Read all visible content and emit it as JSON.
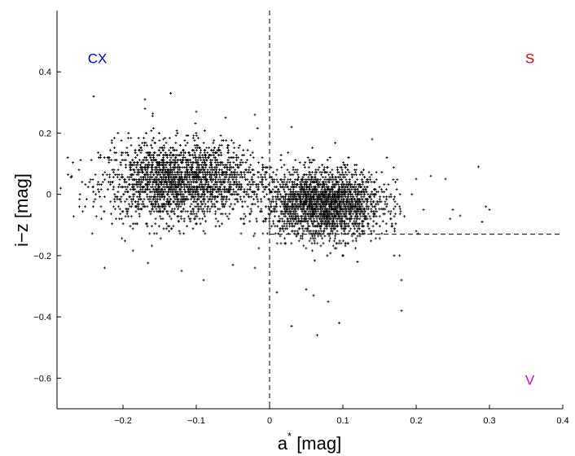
{
  "chart_data": {
    "type": "scatter",
    "xlabel": {
      "main": "a",
      "sup": "*",
      "unit": " [mag]"
    },
    "ylabel": "i−z [mag]",
    "xlim": [
      -0.29,
      0.4
    ],
    "ylim": [
      -0.7,
      0.6
    ],
    "x_ticks": [
      -0.2,
      -0.1,
      0,
      0.1,
      0.2,
      0.3,
      0.4
    ],
    "x_tick_labels": [
      "−0.2",
      "−0.1",
      "0",
      "0.1",
      "0.2",
      "0.3",
      "0.4"
    ],
    "y_ticks": [
      0.4,
      0.2,
      0,
      -0.2,
      -0.4,
      -0.6
    ],
    "y_tick_labels": [
      "0.4",
      "0.2",
      "0",
      "−0.2",
      "−0.4",
      "−0.6"
    ],
    "grid": false,
    "marker_color": "#000000",
    "dividers": {
      "vertical_x": 0,
      "horizontal_y": -0.13,
      "horizontal_from_x": 0
    },
    "region_labels": [
      {
        "text": "CX",
        "x": -0.235,
        "y": 0.445,
        "color": "#0000cc"
      },
      {
        "text": "S",
        "x": 0.355,
        "y": 0.445,
        "color": "#dd0000"
      },
      {
        "text": "V",
        "x": 0.355,
        "y": -0.605,
        "color": "#dd00dd"
      }
    ],
    "clusters": [
      {
        "name": "C",
        "cx": -0.14,
        "cy": 0.04,
        "sx": 0.045,
        "sy": 0.065,
        "n": 1500
      },
      {
        "name": "X",
        "cx": -0.08,
        "cy": 0.05,
        "sx": 0.04,
        "sy": 0.06,
        "n": 700
      },
      {
        "name": "S",
        "cx": 0.075,
        "cy": -0.03,
        "sx": 0.04,
        "sy": 0.055,
        "n": 2200
      }
    ],
    "outliers": [
      [
        -0.24,
        0.32
      ],
      [
        -0.135,
        0.33
      ],
      [
        -0.17,
        0.31
      ],
      [
        -0.17,
        0.28
      ],
      [
        -0.06,
        0.25
      ],
      [
        -0.225,
        -0.24
      ],
      [
        -0.12,
        -0.25
      ],
      [
        -0.09,
        -0.28
      ],
      [
        -0.05,
        -0.23
      ],
      [
        0.08,
        -0.35
      ],
      [
        0.06,
        -0.33
      ],
      [
        0.05,
        -0.31
      ],
      [
        0.03,
        -0.43
      ],
      [
        0.065,
        -0.46
      ],
      [
        0.095,
        -0.42
      ],
      [
        0.18,
        -0.38
      ],
      [
        0.18,
        -0.28
      ],
      [
        0.14,
        0.18
      ],
      [
        0.2,
        0.05
      ],
      [
        0.22,
        0.06
      ],
      [
        0.24,
        0.05
      ],
      [
        0.25,
        -0.05
      ],
      [
        0.26,
        -0.07
      ],
      [
        0.285,
        0.09
      ],
      [
        0.29,
        -0.09
      ],
      [
        0.295,
        -0.04
      ],
      [
        0.3,
        -0.05
      ],
      [
        -0.27,
        0.06
      ],
      [
        -0.285,
        0.02
      ],
      [
        -0.26,
        0.08
      ],
      [
        -0.1,
        0.27
      ],
      [
        -0.02,
        0.26
      ],
      [
        0.03,
        0.22
      ],
      [
        -0.145,
        0.18
      ],
      [
        0.1,
        -0.2
      ],
      [
        0.12,
        -0.22
      ],
      [
        0.17,
        -0.2
      ],
      [
        0.0,
        -0.29
      ],
      [
        0.01,
        -0.32
      ],
      [
        -0.02,
        -0.24
      ],
      [
        0.2,
        -0.12
      ],
      [
        0.16,
        0.12
      ],
      [
        0.21,
        -0.05
      ]
    ]
  }
}
